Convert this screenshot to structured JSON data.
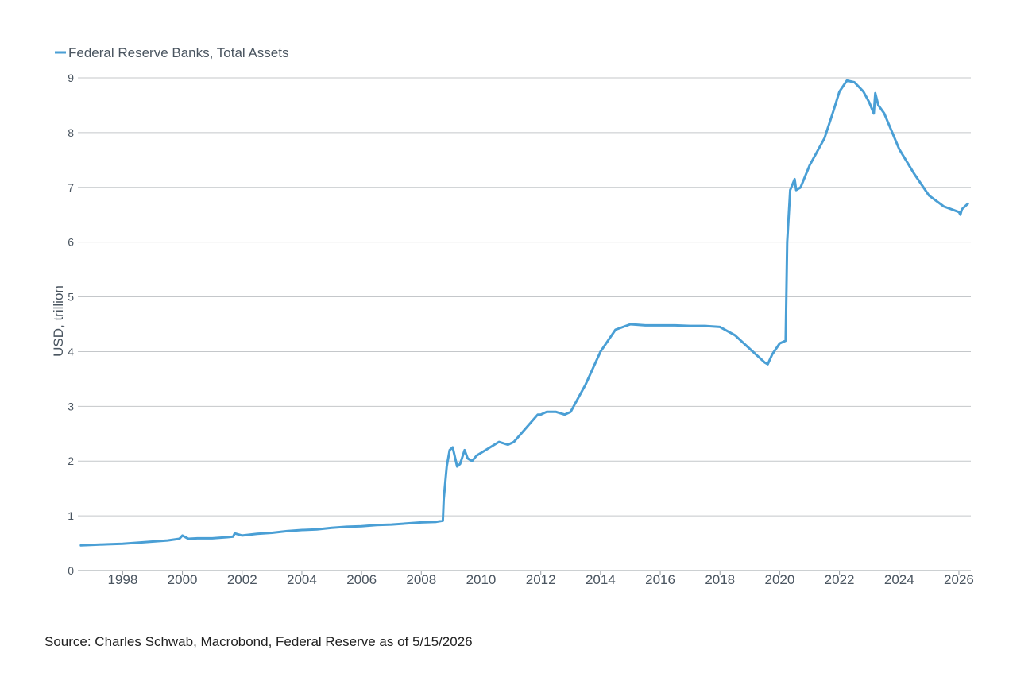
{
  "chart_data": {
    "type": "line",
    "legend_position": "top-left",
    "ylabel": "USD, trillion",
    "ylim": [
      0,
      9
    ],
    "y_ticks": [
      0,
      1,
      2,
      3,
      4,
      5,
      6,
      7,
      8,
      9
    ],
    "xlim": [
      1996.5,
      2026.4
    ],
    "x_ticks": [
      1998,
      2000,
      2002,
      2004,
      2006,
      2008,
      2010,
      2012,
      2014,
      2016,
      2018,
      2020,
      2022,
      2024,
      2026
    ],
    "grid": "horizontal",
    "series": [
      {
        "name": "Federal Reserve Banks, Total Assets",
        "color": "#4a9fd5",
        "x": [
          1996.6,
          1997.0,
          1997.5,
          1998.0,
          1998.5,
          1999.0,
          1999.5,
          1999.9,
          2000.0,
          2000.2,
          2000.5,
          2001.0,
          2001.5,
          2001.7,
          2001.75,
          2002.0,
          2002.5,
          2003.0,
          2003.5,
          2004.0,
          2004.5,
          2005.0,
          2005.5,
          2006.0,
          2006.5,
          2007.0,
          2007.5,
          2008.0,
          2008.5,
          2008.72,
          2008.75,
          2008.85,
          2008.95,
          2009.05,
          2009.2,
          2009.3,
          2009.45,
          2009.55,
          2009.7,
          2009.85,
          2010.0,
          2010.3,
          2010.6,
          2010.9,
          2011.1,
          2011.5,
          2011.9,
          2012.0,
          2012.2,
          2012.5,
          2012.8,
          2013.0,
          2013.5,
          2014.0,
          2014.5,
          2015.0,
          2015.5,
          2016.0,
          2016.5,
          2017.0,
          2017.5,
          2018.0,
          2018.5,
          2019.0,
          2019.5,
          2019.6,
          2019.75,
          2020.0,
          2020.2,
          2020.25,
          2020.35,
          2020.5,
          2020.55,
          2020.7,
          2021.0,
          2021.5,
          2021.8,
          2022.0,
          2022.25,
          2022.5,
          2022.8,
          2023.0,
          2023.15,
          2023.2,
          2023.3,
          2023.5,
          2024.0,
          2024.5,
          2025.0,
          2025.5,
          2026.0,
          2026.05,
          2026.1,
          2026.3
        ],
        "y": [
          0.46,
          0.47,
          0.48,
          0.49,
          0.51,
          0.53,
          0.55,
          0.58,
          0.64,
          0.58,
          0.59,
          0.59,
          0.61,
          0.62,
          0.68,
          0.64,
          0.67,
          0.69,
          0.72,
          0.74,
          0.75,
          0.78,
          0.8,
          0.81,
          0.83,
          0.84,
          0.86,
          0.88,
          0.89,
          0.91,
          1.3,
          1.9,
          2.2,
          2.25,
          1.9,
          1.95,
          2.2,
          2.05,
          2.0,
          2.1,
          2.15,
          2.25,
          2.35,
          2.3,
          2.35,
          2.6,
          2.85,
          2.85,
          2.9,
          2.9,
          2.85,
          2.9,
          3.4,
          4.0,
          4.4,
          4.5,
          4.48,
          4.48,
          4.48,
          4.47,
          4.47,
          4.45,
          4.3,
          4.05,
          3.8,
          3.77,
          3.95,
          4.15,
          4.2,
          6.0,
          6.95,
          7.15,
          6.95,
          7.0,
          7.4,
          7.9,
          8.4,
          8.75,
          8.95,
          8.92,
          8.75,
          8.55,
          8.35,
          8.72,
          8.5,
          8.35,
          7.7,
          7.25,
          6.85,
          6.65,
          6.55,
          6.5,
          6.6,
          6.7
        ]
      }
    ]
  },
  "source_note": "Source: Charles Schwab, Macrobond, Federal Reserve as of 5/15/2026"
}
